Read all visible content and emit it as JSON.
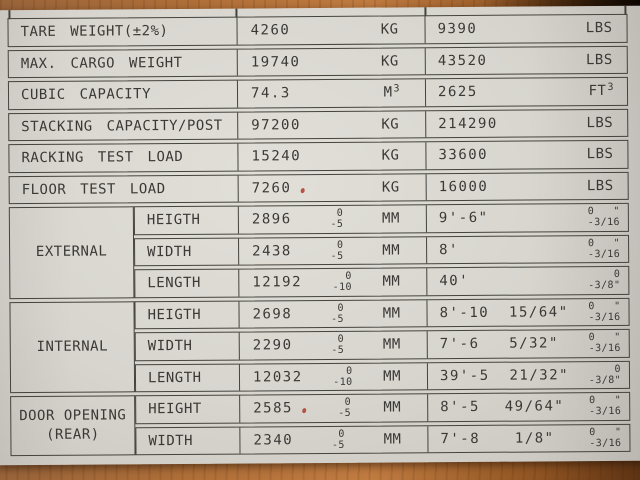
{
  "colors": {
    "paper": "#d9d6d0",
    "ink": "#3b3936",
    "line": "#45433d",
    "mark": "#b0392c",
    "wood_light": "#c07b40",
    "wood_mid": "#b06f38",
    "wood_dark": "#5d3314"
  },
  "table": {
    "rows": [
      {
        "label": "TARE WEIGHT(±2%)",
        "metric": {
          "value": "4260",
          "unit": "KG"
        },
        "imperial": {
          "value": "9390",
          "unit": "LBS"
        }
      },
      {
        "label": "MAX. CARGO WEIGHT",
        "metric": {
          "value": "19740",
          "unit": "KG"
        },
        "imperial": {
          "value": "43520",
          "unit": "LBS"
        }
      },
      {
        "label": "CUBIC CAPACITY",
        "metric": {
          "value": "74.3",
          "unit": "M",
          "unit_sup": "3"
        },
        "imperial": {
          "value": "2625",
          "unit": "FT",
          "unit_sup": "3"
        }
      },
      {
        "label": "STACKING CAPACITY/POST",
        "metric": {
          "value": "97200",
          "unit": "KG"
        },
        "imperial": {
          "value": "214290",
          "unit": "LBS"
        }
      },
      {
        "label": "RACKING TEST LOAD",
        "metric": {
          "value": "15240",
          "unit": "KG"
        },
        "imperial": {
          "value": "33600",
          "unit": "LBS"
        }
      },
      {
        "label": "FLOOR TEST LOAD",
        "metric": {
          "value": "7260",
          "unit": "KG",
          "mark": true
        },
        "imperial": {
          "value": "16000",
          "unit": "LBS"
        }
      },
      {
        "group": {
          "label": "EXTERNAL",
          "span": 3
        },
        "label": "HEIGTH",
        "metric": {
          "value": "2896",
          "tol_top": "0",
          "tol_bottom": "-5",
          "unit": "MM"
        },
        "imperial": {
          "value": "9'-6\"",
          "value2": "",
          "tol_top": "0   \"",
          "tol_bottom": "-3/16"
        }
      },
      {
        "label": "WIDTH",
        "metric": {
          "value": "2438",
          "tol_top": "0",
          "tol_bottom": "-5",
          "unit": "MM"
        },
        "imperial": {
          "value": "8'",
          "value2": "",
          "tol_top": "0   \"",
          "tol_bottom": "-3/16"
        }
      },
      {
        "label": "LENGTH",
        "metric": {
          "value": "12192",
          "tol_top": "0",
          "tol_bottom": "-10",
          "unit": "MM"
        },
        "imperial": {
          "value": "40'",
          "value2": "",
          "tol_top": "0",
          "tol_bottom": "-3/8\""
        }
      },
      {
        "group": {
          "label": "INTERNAL",
          "span": 3
        },
        "label": "HEIGTH",
        "metric": {
          "value": "2698",
          "tol_top": "0",
          "tol_bottom": "-5",
          "unit": "MM"
        },
        "imperial": {
          "value": "8'-10",
          "value2": "15/64\"",
          "tol_top": "0   \"",
          "tol_bottom": "-3/16"
        }
      },
      {
        "label": "WIDTH",
        "metric": {
          "value": "2290",
          "tol_top": "0",
          "tol_bottom": "-5",
          "unit": "MM"
        },
        "imperial": {
          "value": "7'-6",
          "value2": "5/32\"",
          "tol_top": "0   \"",
          "tol_bottom": "-3/16"
        }
      },
      {
        "label": "LENGTH",
        "metric": {
          "value": "12032",
          "tol_top": "0",
          "tol_bottom": "-10",
          "unit": "MM"
        },
        "imperial": {
          "value": "39'-5",
          "value2": "21/32\"",
          "tol_top": "0",
          "tol_bottom": "-3/8\""
        }
      },
      {
        "group": {
          "label": "DOOR OPENING",
          "label2": "(REAR)",
          "span": 2
        },
        "label": "HEIGHT",
        "metric": {
          "value": "2585",
          "tol_top": "0",
          "tol_bottom": "-5",
          "unit": "MM",
          "mark": true
        },
        "imperial": {
          "value": "8'-5",
          "value2": "49/64\"",
          "tol_top": "0   \"",
          "tol_bottom": "-3/16"
        }
      },
      {
        "label": "WIDTH",
        "metric": {
          "value": "2340",
          "tol_top": "0",
          "tol_bottom": "-5",
          "unit": "MM"
        },
        "imperial": {
          "value": "7'-8",
          "value2": "1/8\"",
          "tol_top": "0   \"",
          "tol_bottom": "-3/16"
        }
      }
    ]
  }
}
